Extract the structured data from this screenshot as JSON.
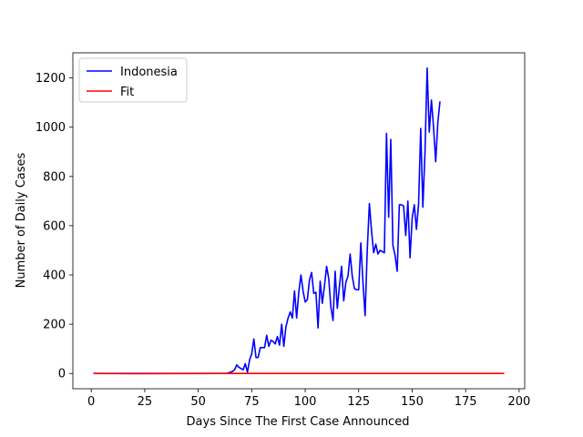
{
  "chart_data": {
    "type": "line",
    "title": "",
    "xlabel": "Days Since The First Case Announced",
    "ylabel": "Number of Daily Cases",
    "xlim": [
      -8.6,
      202.6
    ],
    "ylim": [
      -62,
      1302
    ],
    "xticks": [
      0,
      25,
      50,
      75,
      100,
      125,
      150,
      175,
      200
    ],
    "yticks": [
      0,
      200,
      400,
      600,
      800,
      1000,
      1200
    ],
    "grid": false,
    "legend_placement": "top-left",
    "series": [
      {
        "name": "Indonesia",
        "color": "#0000ff",
        "points": [
          [
            1,
            0
          ],
          [
            10,
            0
          ],
          [
            20,
            0
          ],
          [
            30,
            0
          ],
          [
            40,
            0
          ],
          [
            50,
            0
          ],
          [
            60,
            0
          ],
          [
            63,
            0
          ],
          [
            64,
            2
          ],
          [
            65,
            5
          ],
          [
            66,
            8
          ],
          [
            67,
            15
          ],
          [
            68,
            35
          ],
          [
            69,
            25
          ],
          [
            70,
            20
          ],
          [
            71,
            15
          ],
          [
            72,
            40
          ],
          [
            73,
            5
          ],
          [
            74,
            55
          ],
          [
            75,
            80
          ],
          [
            76,
            140
          ],
          [
            77,
            65
          ],
          [
            78,
            65
          ],
          [
            79,
            105
          ],
          [
            80,
            105
          ],
          [
            81,
            105
          ],
          [
            82,
            155
          ],
          [
            83,
            110
          ],
          [
            84,
            135
          ],
          [
            85,
            130
          ],
          [
            86,
            120
          ],
          [
            87,
            150
          ],
          [
            88,
            115
          ],
          [
            89,
            200
          ],
          [
            90,
            110
          ],
          [
            91,
            190
          ],
          [
            92,
            225
          ],
          [
            93,
            250
          ],
          [
            94,
            225
          ],
          [
            95,
            335
          ],
          [
            96,
            225
          ],
          [
            97,
            330
          ],
          [
            98,
            400
          ],
          [
            99,
            335
          ],
          [
            100,
            290
          ],
          [
            101,
            300
          ],
          [
            102,
            380
          ],
          [
            103,
            410
          ],
          [
            104,
            325
          ],
          [
            105,
            330
          ],
          [
            106,
            185
          ],
          [
            107,
            375
          ],
          [
            108,
            285
          ],
          [
            109,
            355
          ],
          [
            110,
            435
          ],
          [
            111,
            385
          ],
          [
            112,
            270
          ],
          [
            113,
            215
          ],
          [
            114,
            415
          ],
          [
            115,
            265
          ],
          [
            116,
            355
          ],
          [
            117,
            435
          ],
          [
            118,
            295
          ],
          [
            119,
            370
          ],
          [
            120,
            395
          ],
          [
            121,
            485
          ],
          [
            122,
            395
          ],
          [
            123,
            345
          ],
          [
            124,
            340
          ],
          [
            125,
            340
          ],
          [
            126,
            530
          ],
          [
            127,
            370
          ],
          [
            128,
            235
          ],
          [
            129,
            500
          ],
          [
            130,
            690
          ],
          [
            131,
            580
          ],
          [
            132,
            490
          ],
          [
            133,
            525
          ],
          [
            134,
            485
          ],
          [
            135,
            500
          ],
          [
            136,
            495
          ],
          [
            137,
            490
          ],
          [
            138,
            975
          ],
          [
            139,
            635
          ],
          [
            140,
            950
          ],
          [
            141,
            520
          ],
          [
            142,
            480
          ],
          [
            143,
            415
          ],
          [
            144,
            685
          ],
          [
            145,
            685
          ],
          [
            146,
            680
          ],
          [
            147,
            560
          ],
          [
            148,
            700
          ],
          [
            149,
            470
          ],
          [
            150,
            630
          ],
          [
            151,
            685
          ],
          [
            152,
            585
          ],
          [
            153,
            690
          ],
          [
            154,
            995
          ],
          [
            155,
            675
          ],
          [
            156,
            900
          ],
          [
            157,
            1240
          ],
          [
            158,
            980
          ],
          [
            159,
            1110
          ],
          [
            160,
            1000
          ],
          [
            161,
            860
          ],
          [
            162,
            1020
          ],
          [
            163,
            1105
          ]
        ]
      },
      {
        "name": "Fit",
        "color": "#ff0000",
        "points": [
          [
            1,
            0
          ],
          [
            20,
            -1
          ],
          [
            40,
            -0.5
          ],
          [
            60,
            0
          ],
          [
            80,
            0
          ],
          [
            100,
            0
          ],
          [
            120,
            0
          ],
          [
            140,
            0
          ],
          [
            160,
            0
          ],
          [
            180,
            0
          ],
          [
            193,
            0
          ]
        ]
      }
    ]
  }
}
